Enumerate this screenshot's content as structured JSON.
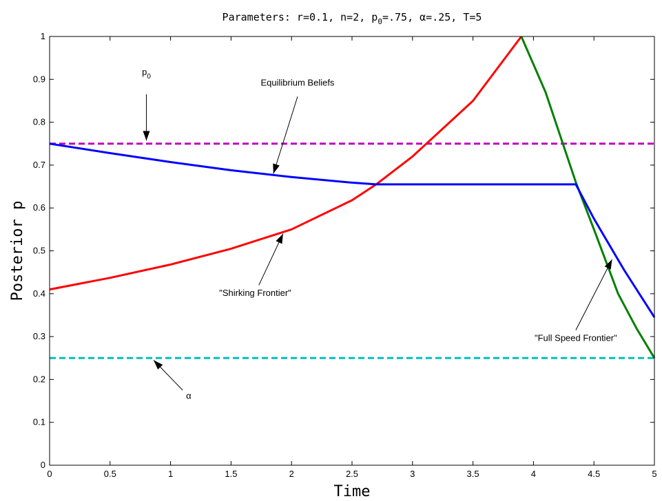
{
  "chart_data": {
    "type": "line",
    "title": {
      "prefix": "Parameters: r=0.1, n=2, p",
      "subscript": "0",
      "suffix": "=.75, α=.25, T=5"
    },
    "xlabel": "Time",
    "ylabel": "Posterior p",
    "xlim": [
      0,
      5
    ],
    "ylim": [
      0,
      1
    ],
    "xticks": [
      0,
      0.5,
      1,
      1.5,
      2,
      2.5,
      3,
      3.5,
      4,
      4.5,
      5
    ],
    "xtick_labels": [
      "0",
      "0.5",
      "1",
      "1.5",
      "2",
      "2.5",
      "3",
      "3.5",
      "4",
      "4.5",
      "5"
    ],
    "yticks": [
      0,
      0.1,
      0.2,
      0.3,
      0.4,
      0.5,
      0.6,
      0.7,
      0.8,
      0.9,
      1
    ],
    "ytick_labels": [
      "0",
      "0.1",
      "0.2",
      "0.3",
      "0.4",
      "0.5",
      "0.6",
      "0.7",
      "0.8",
      "0.9",
      "1"
    ],
    "grid": false,
    "series": [
      {
        "key": "p0_line",
        "color": "#bf00bf",
        "dash": true,
        "x": [
          0,
          5
        ],
        "y": [
          0.75,
          0.75
        ]
      },
      {
        "key": "alpha_line",
        "color": "#00bfbf",
        "dash": true,
        "x": [
          0,
          5
        ],
        "y": [
          0.25,
          0.25
        ]
      },
      {
        "key": "shirking_frontier",
        "color": "#ff0000",
        "dash": false,
        "x": [
          0,
          0.5,
          1,
          1.5,
          2,
          2.5,
          2.7,
          3,
          3.5,
          3.9
        ],
        "y": [
          0.41,
          0.437,
          0.468,
          0.505,
          0.55,
          0.618,
          0.655,
          0.72,
          0.85,
          1.0
        ]
      },
      {
        "key": "full_speed_frontier",
        "color": "#008000",
        "dash": false,
        "x": [
          3.9,
          4.1,
          4.35,
          4.5,
          4.7,
          4.85,
          5
        ],
        "y": [
          1.0,
          0.87,
          0.66,
          0.55,
          0.4,
          0.32,
          0.25
        ]
      },
      {
        "key": "equilibrium_beliefs",
        "color": "#0000ff",
        "dash": false,
        "x": [
          0,
          0.5,
          1,
          1.5,
          2,
          2.5,
          2.7,
          3,
          3.5,
          4,
          4.35,
          4.5,
          4.75,
          5
        ],
        "y": [
          0.75,
          0.728,
          0.707,
          0.688,
          0.672,
          0.659,
          0.655,
          0.655,
          0.655,
          0.655,
          0.655,
          0.575,
          0.455,
          0.345
        ]
      }
    ],
    "annotations": [
      {
        "key": "p0",
        "text": "p",
        "subscript": "0",
        "text_at": [
          0.8,
          0.91
        ],
        "arrow_from": [
          0.8,
          0.865
        ],
        "arrow_to": [
          0.8,
          0.757
        ]
      },
      {
        "key": "equilibrium_beliefs",
        "text": "Equilibrium Beliefs",
        "text_at": [
          2.05,
          0.885
        ],
        "arrow_from": [
          2.05,
          0.86
        ],
        "arrow_to": [
          1.85,
          0.68
        ]
      },
      {
        "key": "shirking_frontier",
        "text": "\"Shirking Frontier\"",
        "text_at": [
          1.7,
          0.395
        ],
        "arrow_from": [
          1.73,
          0.42
        ],
        "arrow_to": [
          1.93,
          0.54
        ]
      },
      {
        "key": "full_speed_frontier",
        "text": "\"Full Speed Frontier\"",
        "text_at": [
          4.35,
          0.29
        ],
        "arrow_from": [
          4.35,
          0.315
        ],
        "arrow_to": [
          4.65,
          0.48
        ]
      },
      {
        "key": "alpha",
        "text": "α",
        "text_at": [
          1.15,
          0.155
        ],
        "arrow_from": [
          1.1,
          0.175
        ],
        "arrow_to": [
          0.86,
          0.245
        ]
      }
    ]
  }
}
